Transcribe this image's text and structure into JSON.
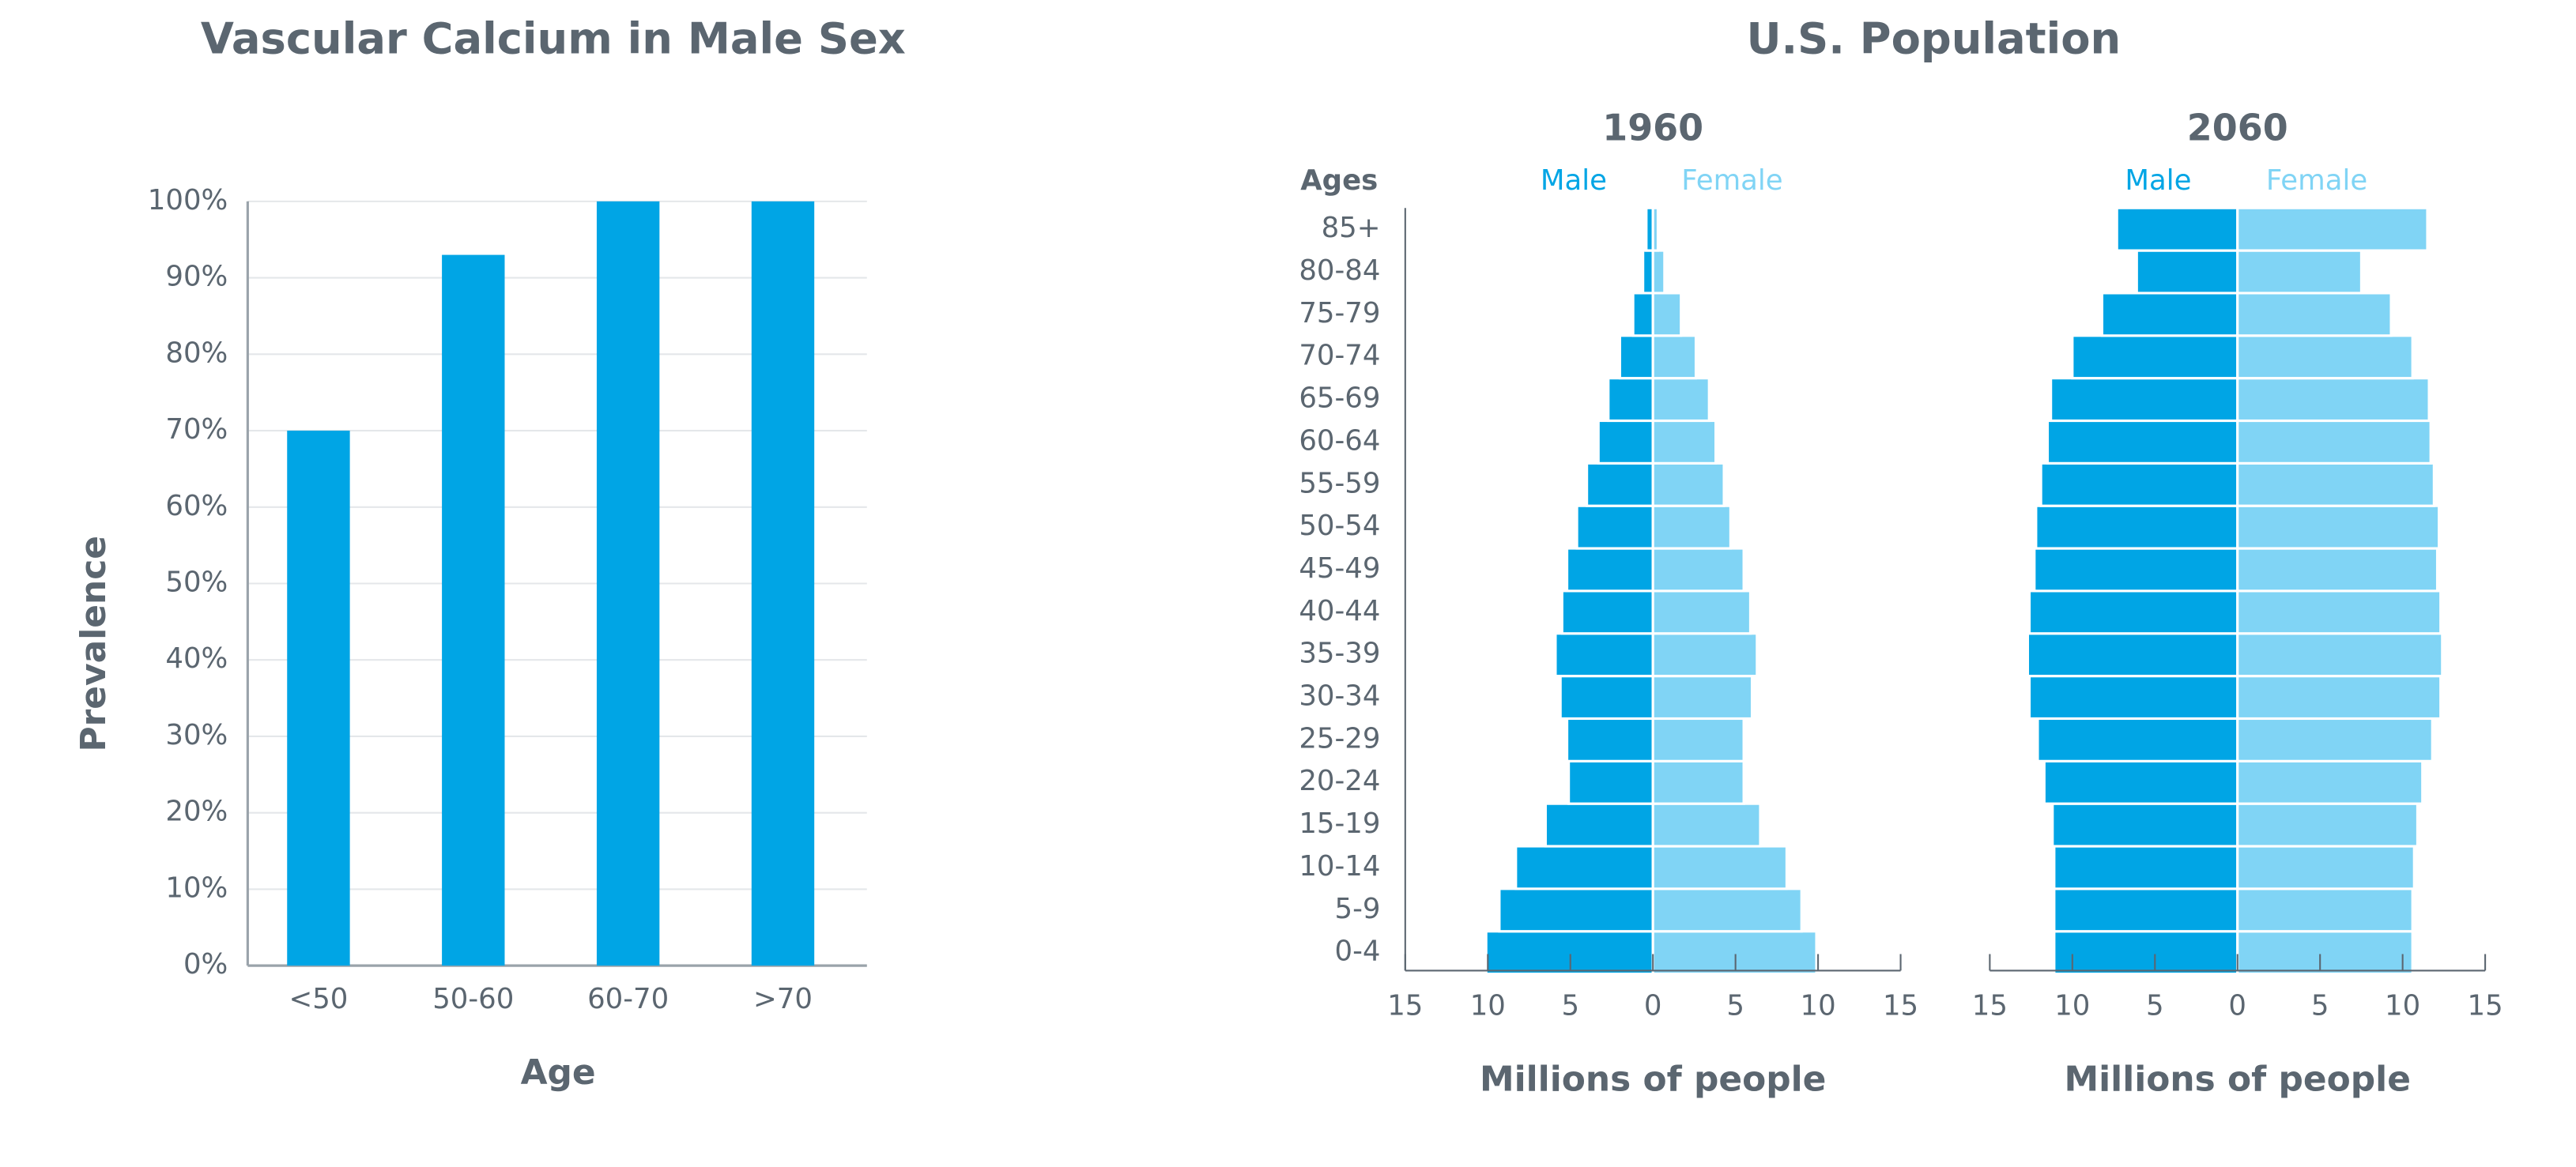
{
  "section_title": "U.S. Population",
  "chart_data": [
    {
      "type": "bar",
      "title": "Vascular Calcium in Male Sex",
      "x_label": "Age",
      "y_label": "Prevalence",
      "categories": [
        "<50",
        "50-60",
        "60-70",
        ">70"
      ],
      "values": [
        70,
        93,
        100,
        100
      ],
      "color": "#00a5e5",
      "ylim": [
        0,
        100
      ],
      "yticks": [
        {
          "value": 0,
          "label": "0%"
        },
        {
          "value": 10,
          "label": "10%"
        },
        {
          "value": 20,
          "label": "20%"
        },
        {
          "value": 30,
          "label": "30%"
        },
        {
          "value": 40,
          "label": "40%"
        },
        {
          "value": 50,
          "label": "50%"
        },
        {
          "value": 60,
          "label": "60%"
        },
        {
          "value": 70,
          "label": "70%"
        },
        {
          "value": 80,
          "label": "80%"
        },
        {
          "value": 90,
          "label": "90%"
        },
        {
          "value": 100,
          "label": "100%"
        }
      ],
      "grid": true
    },
    {
      "type": "pyramid",
      "title": "1960",
      "y_label": "Ages",
      "x_label": "Millions of people",
      "categories": [
        "0-4",
        "5-9",
        "10-14",
        "15-19",
        "20-24",
        "25-29",
        "30-34",
        "35-39",
        "40-44",
        "45-49",
        "50-54",
        "55-59",
        "60-64",
        "65-69",
        "70-74",
        "75-79",
        "80-84",
        "85+"
      ],
      "series": [
        {
          "name": "Male",
          "color": "#00a5e5",
          "values": [
            10.1,
            9.3,
            8.3,
            6.5,
            5.1,
            5.2,
            5.6,
            5.9,
            5.5,
            5.2,
            4.6,
            4.0,
            3.3,
            2.7,
            2.0,
            1.2,
            0.6,
            0.4
          ]
        },
        {
          "name": "Female",
          "color": "#80d4f5",
          "values": [
            9.9,
            9.0,
            8.1,
            6.5,
            5.5,
            5.5,
            6.0,
            6.3,
            5.9,
            5.5,
            4.7,
            4.3,
            3.8,
            3.4,
            2.6,
            1.7,
            0.7,
            0.3
          ]
        }
      ],
      "xlim": [
        0,
        15
      ],
      "xticks": [
        0,
        5,
        10,
        15
      ]
    },
    {
      "type": "pyramid",
      "title": "2060",
      "x_label": "Millions of people",
      "series": [
        {
          "name": "Male",
          "color": "#00a5e5",
          "values": [
            11.1,
            11.1,
            11.1,
            11.2,
            11.7,
            12.1,
            12.6,
            12.7,
            12.6,
            12.3,
            12.2,
            11.9,
            11.5,
            11.3,
            10.0,
            8.2,
            6.1,
            7.3
          ]
        },
        {
          "name": "Female",
          "color": "#80d4f5",
          "values": [
            10.6,
            10.6,
            10.7,
            10.9,
            11.2,
            11.8,
            12.3,
            12.4,
            12.3,
            12.1,
            12.2,
            11.9,
            11.7,
            11.6,
            10.6,
            9.3,
            7.5,
            11.5
          ]
        }
      ],
      "xlim": [
        0,
        15
      ],
      "xticks": [
        0,
        5,
        10,
        15
      ]
    }
  ]
}
